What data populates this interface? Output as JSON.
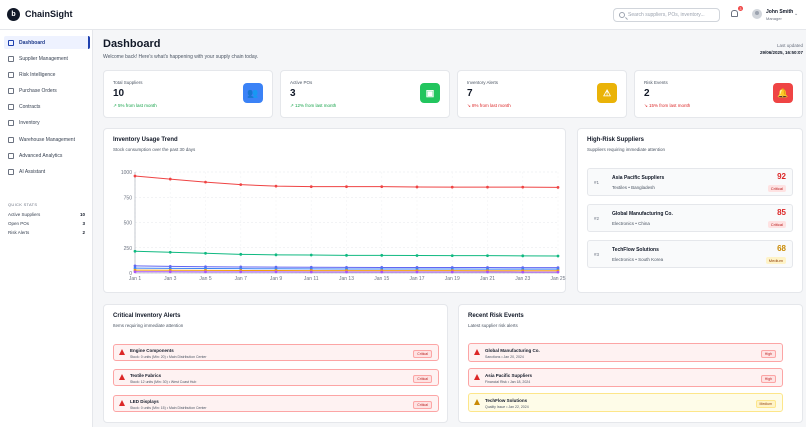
{
  "brand": {
    "name": "ChainSight",
    "logo_letter": "b"
  },
  "search": {
    "placeholder": "Search suppliers, POs, inventory..."
  },
  "notifications": {
    "count": "3"
  },
  "user": {
    "name": "John Smith",
    "role": "Manager"
  },
  "sidebar": {
    "items": [
      {
        "label": "Dashboard",
        "icon": "grid-icon",
        "active": true
      },
      {
        "label": "Supplier Management",
        "icon": "users-icon"
      },
      {
        "label": "Risk Intelligence",
        "icon": "shield-icon"
      },
      {
        "label": "Purchase Orders",
        "icon": "cart-icon"
      },
      {
        "label": "Contracts",
        "icon": "document-icon"
      },
      {
        "label": "Inventory",
        "icon": "box-icon"
      },
      {
        "label": "Warehouse Management",
        "icon": "warehouse-icon"
      },
      {
        "label": "Advanced Analytics",
        "icon": "trend-icon"
      },
      {
        "label": "AI Assistant",
        "icon": "chat-icon"
      }
    ],
    "quick_stats": {
      "title": "QUICK STATS",
      "rows": [
        {
          "label": "Active Suppliers",
          "value": "10"
        },
        {
          "label": "Open POs",
          "value": "3"
        },
        {
          "label": "Risk Alerts",
          "value": "2"
        }
      ]
    }
  },
  "header": {
    "title": "Dashboard",
    "subtitle": "Welcome back! Here's what's happening with your supply chain today.",
    "updated_label": "Last updated",
    "updated_value": "29/06/2025, 16:50:07"
  },
  "stats": [
    {
      "label": "Total Suppliers",
      "value": "10",
      "trend": "↗ 5% from last month",
      "trend_color": "#16a34a",
      "icon": "users-icon",
      "icon_color": "#3b82f6",
      "glyph": "👥"
    },
    {
      "label": "Active POs",
      "value": "3",
      "trend": "↗ 12% from last month",
      "trend_color": "#16a34a",
      "icon": "package-icon",
      "icon_color": "#22c55e",
      "glyph": "▣"
    },
    {
      "label": "Inventory Alerts",
      "value": "7",
      "trend": "↘ 8% from last month",
      "trend_color": "#dc2626",
      "icon": "warning-icon",
      "icon_color": "#eab308",
      "glyph": "⚠"
    },
    {
      "label": "Risk Events",
      "value": "2",
      "trend": "↘ 15% from last month",
      "trend_color": "#dc2626",
      "icon": "bell-icon",
      "icon_color": "#ef4444",
      "glyph": "🔔"
    }
  ],
  "trend_card": {
    "title": "Inventory Usage Trend",
    "subtitle": "Stock consumption over the past 30 days"
  },
  "chart_data": {
    "type": "line",
    "x": [
      "Jan 1",
      "Jan 3",
      "Jan 5",
      "Jan 7",
      "Jan 9",
      "Jan 11",
      "Jan 13",
      "Jan 15",
      "Jan 17",
      "Jan 19",
      "Jan 21",
      "Jan 23",
      "Jan 25"
    ],
    "ylim": [
      0,
      1000
    ],
    "yticks": [
      "0",
      "250",
      "500",
      "750",
      "1000"
    ],
    "grid": true,
    "series": [
      {
        "color": "#ef4444",
        "values": [
          960,
          930,
          900,
          875,
          860,
          855,
          855,
          855,
          852,
          850,
          850,
          850,
          848
        ]
      },
      {
        "color": "#10b981",
        "values": [
          215,
          205,
          195,
          185,
          180,
          178,
          175,
          175,
          173,
          172,
          172,
          170,
          168
        ]
      },
      {
        "color": "#6366f1",
        "values": [
          70,
          65,
          62,
          60,
          58,
          57,
          56,
          55,
          55,
          54,
          54,
          53,
          53
        ]
      },
      {
        "color": "#3b82f6",
        "values": [
          48,
          46,
          44,
          43,
          42,
          41,
          40,
          40,
          39,
          39,
          38,
          38,
          38
        ]
      },
      {
        "color": "#f59e0b",
        "values": [
          28,
          27,
          26,
          25,
          25,
          24,
          24,
          23,
          23,
          23,
          22,
          22,
          22
        ]
      },
      {
        "color": "#a855f7",
        "values": [
          12,
          12,
          11,
          11,
          11,
          10,
          10,
          10,
          10,
          10,
          10,
          9,
          9
        ]
      }
    ]
  },
  "high_risk": {
    "title": "High-Risk Suppliers",
    "subtitle": "Suppliers requiring immediate attention",
    "items": [
      {
        "rank": "#1",
        "name": "Asia Pacific Suppliers",
        "category": "Textiles",
        "country": "Bangladesh",
        "score": "92",
        "level": "Critical",
        "score_color": "#dc2626",
        "badge_bg": "#fee2e2",
        "badge_fg": "#b91c1c"
      },
      {
        "rank": "#2",
        "name": "Global Manufacturing Co.",
        "category": "Electronics",
        "country": "China",
        "score": "85",
        "level": "Critical",
        "score_color": "#dc2626",
        "badge_bg": "#fee2e2",
        "badge_fg": "#b91c1c"
      },
      {
        "rank": "#3",
        "name": "TechFlow Solutions",
        "category": "Electronics",
        "country": "South Korea",
        "score": "68",
        "level": "Medium",
        "score_color": "#ca8a04",
        "badge_bg": "#fef3c7",
        "badge_fg": "#92400e"
      }
    ]
  },
  "inventory_alerts": {
    "title": "Critical Inventory Alerts",
    "subtitle": "Items requiring immediate attention",
    "items": [
      {
        "name": "Engine Components",
        "meta": "Stock: 0 units (Min: 20) • Main Distribution Center",
        "badge": "Critical"
      },
      {
        "name": "Textile Fabrics",
        "meta": "Stock: 12 units (Min: 30) • West Coast Hub",
        "badge": "Critical"
      },
      {
        "name": "LED Displays",
        "meta": "Stock: 0 units (Min: 15) • Main Distribution Center",
        "badge": "Critical"
      }
    ]
  },
  "risk_events": {
    "title": "Recent Risk Events",
    "subtitle": "Latest supplier risk alerts",
    "items": [
      {
        "name": "Global Manufacturing Co.",
        "meta": "Sanctions • Jan 20, 2024",
        "badge": "High",
        "bg": "#fef2f2",
        "border": "#fca5a5",
        "badge_bg": "#fee2e2",
        "badge_fg": "#b91c1c",
        "icon_color": "#dc2626"
      },
      {
        "name": "Asia Pacific Suppliers",
        "meta": "Financial Risk • Jan 18, 2024",
        "badge": "High",
        "bg": "#fef2f2",
        "border": "#fca5a5",
        "badge_bg": "#fee2e2",
        "badge_fg": "#b91c1c",
        "icon_color": "#dc2626"
      },
      {
        "name": "TechFlow Solutions",
        "meta": "Quality Issue • Jan 22, 2024",
        "badge": "Medium",
        "bg": "#fefce8",
        "border": "#fde68a",
        "badge_bg": "#fef3c7",
        "badge_fg": "#92400e",
        "icon_color": "#ca8a04"
      }
    ]
  }
}
